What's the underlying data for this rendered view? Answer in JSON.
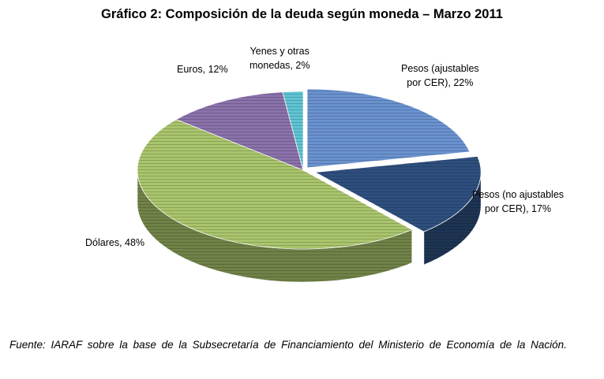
{
  "chart_data": {
    "type": "pie",
    "title": "Gráfico 2: Composición de la deuda según moneda – Marzo 2011",
    "slices": [
      {
        "name": "Pesos (ajustables por CER)",
        "label_lines": [
          "Pesos (ajustables",
          "por CER),  22%"
        ],
        "value": 22,
        "color": "#6a92cf"
      },
      {
        "name": "Pesos (no ajustables por CER)",
        "label_lines": [
          "Pesos (no ajustables",
          "por CER),  17%"
        ],
        "value": 17,
        "color": "#2e4f7e"
      },
      {
        "name": "Dólares",
        "label_lines": [
          "Dólares, 48%"
        ],
        "value": 48,
        "color": "#a9c56c"
      },
      {
        "name": "Euros",
        "label_lines": [
          "Euros, 12%"
        ],
        "value": 12,
        "color": "#8a72ab"
      },
      {
        "name": "Yenes y otras monedas",
        "label_lines": [
          "Yenes y otras",
          "monedas, 2%"
        ],
        "value": 2,
        "color": "#5fc4d3"
      }
    ],
    "legend": "none",
    "style": "3d-exploded"
  },
  "source": "Fuente: IARAF sobre la base de la Subsecretaría de Financiamiento del Ministerio de Economía de la Nación."
}
